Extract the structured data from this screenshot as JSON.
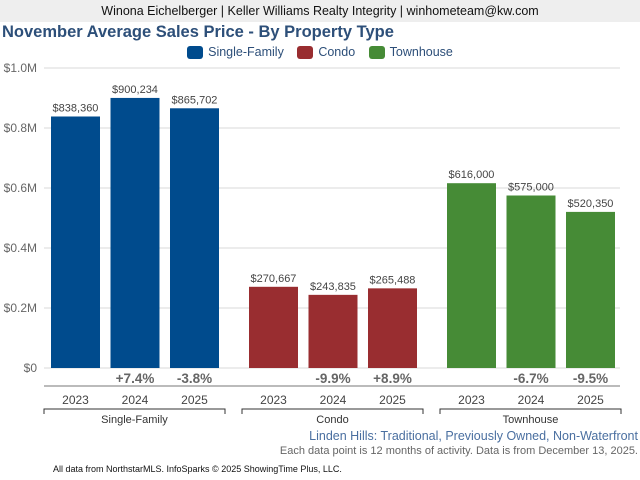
{
  "header": {
    "agent_line": "Winona Eichelberger | Keller Williams Realty Integrity | winhometeam@kw.com"
  },
  "chart_data": {
    "type": "bar",
    "title": "November Average Sales Price - By Property Type",
    "xlabel": "",
    "ylabel": "",
    "ylim": [
      0,
      1000000
    ],
    "yticks": [
      {
        "value": 0,
        "label": "$0"
      },
      {
        "value": 200000,
        "label": "$0.2M"
      },
      {
        "value": 400000,
        "label": "$0.4M"
      },
      {
        "value": 600000,
        "label": "$0.6M"
      },
      {
        "value": 800000,
        "label": "$0.8M"
      },
      {
        "value": 1000000,
        "label": "$1.0M"
      }
    ],
    "grid": true,
    "legend_position": "top-center",
    "categories": [
      "2023",
      "2024",
      "2025"
    ],
    "series": [
      {
        "name": "Single-Family",
        "color": "#004b8d",
        "values": [
          838360,
          900234,
          865702
        ],
        "value_labels": [
          "$838,360",
          "$900,234",
          "$865,702"
        ],
        "change_labels": [
          "",
          "+7.4%",
          "-3.8%"
        ]
      },
      {
        "name": "Condo",
        "color": "#992d30",
        "values": [
          270667,
          243835,
          265488
        ],
        "value_labels": [
          "$270,667",
          "$243,835",
          "$265,488"
        ],
        "change_labels": [
          "",
          "-9.9%",
          "+8.9%"
        ]
      },
      {
        "name": "Townhouse",
        "color": "#468b36",
        "values": [
          616000,
          575000,
          520350
        ],
        "value_labels": [
          "$616,000",
          "$575,000",
          "$520,350"
        ],
        "change_labels": [
          "",
          "-6.7%",
          "-9.5%"
        ]
      }
    ]
  },
  "subtitle": "Linden Hills: Traditional, Previously Owned, Non-Waterfront",
  "note": "Each data point is 12 months of activity. Data is from December 13, 2025.",
  "footer": "All data from NorthstarMLS. InfoSparks © 2025 ShowingTime Plus, LLC."
}
